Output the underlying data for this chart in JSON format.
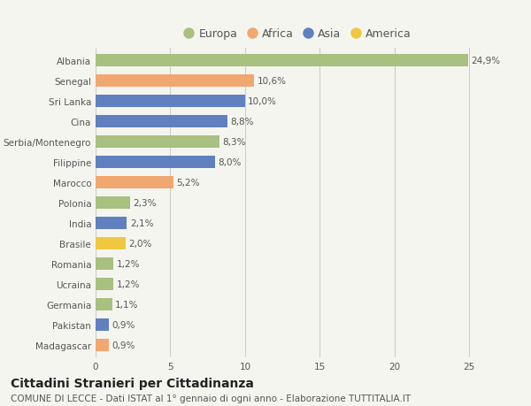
{
  "categories": [
    "Albania",
    "Senegal",
    "Sri Lanka",
    "Cina",
    "Serbia/Montenegro",
    "Filippine",
    "Marocco",
    "Polonia",
    "India",
    "Brasile",
    "Romania",
    "Ucraina",
    "Germania",
    "Pakistan",
    "Madagascar"
  ],
  "values": [
    24.9,
    10.6,
    10.0,
    8.8,
    8.3,
    8.0,
    5.2,
    2.3,
    2.1,
    2.0,
    1.2,
    1.2,
    1.1,
    0.9,
    0.9
  ],
  "labels": [
    "24,9%",
    "10,6%",
    "10,0%",
    "8,8%",
    "8,3%",
    "8,0%",
    "5,2%",
    "2,3%",
    "2,1%",
    "2,0%",
    "1,2%",
    "1,2%",
    "1,1%",
    "0,9%",
    "0,9%"
  ],
  "continents": [
    "Europa",
    "Africa",
    "Asia",
    "Asia",
    "Europa",
    "Asia",
    "Africa",
    "Europa",
    "Asia",
    "America",
    "Europa",
    "Europa",
    "Europa",
    "Asia",
    "Africa"
  ],
  "continent_colors": {
    "Europa": "#a8c080",
    "Africa": "#f0a870",
    "Asia": "#6080c0",
    "America": "#f0c840"
  },
  "legend_order": [
    "Europa",
    "Africa",
    "Asia",
    "America"
  ],
  "title1": "Cittadini Stranieri per Cittadinanza",
  "title2": "COMUNE DI LECCE - Dati ISTAT al 1° gennaio di ogni anno - Elaborazione TUTTITALIA.IT",
  "xlim": [
    0,
    27
  ],
  "xticks": [
    0,
    5,
    10,
    15,
    20,
    25
  ],
  "background_color": "#f5f5f0",
  "bar_height": 0.6,
  "grid_color": "#cccccc",
  "label_fontsize": 7.5,
  "tick_fontsize": 7.5,
  "legend_fontsize": 9,
  "title1_fontsize": 10,
  "title2_fontsize": 7.5
}
